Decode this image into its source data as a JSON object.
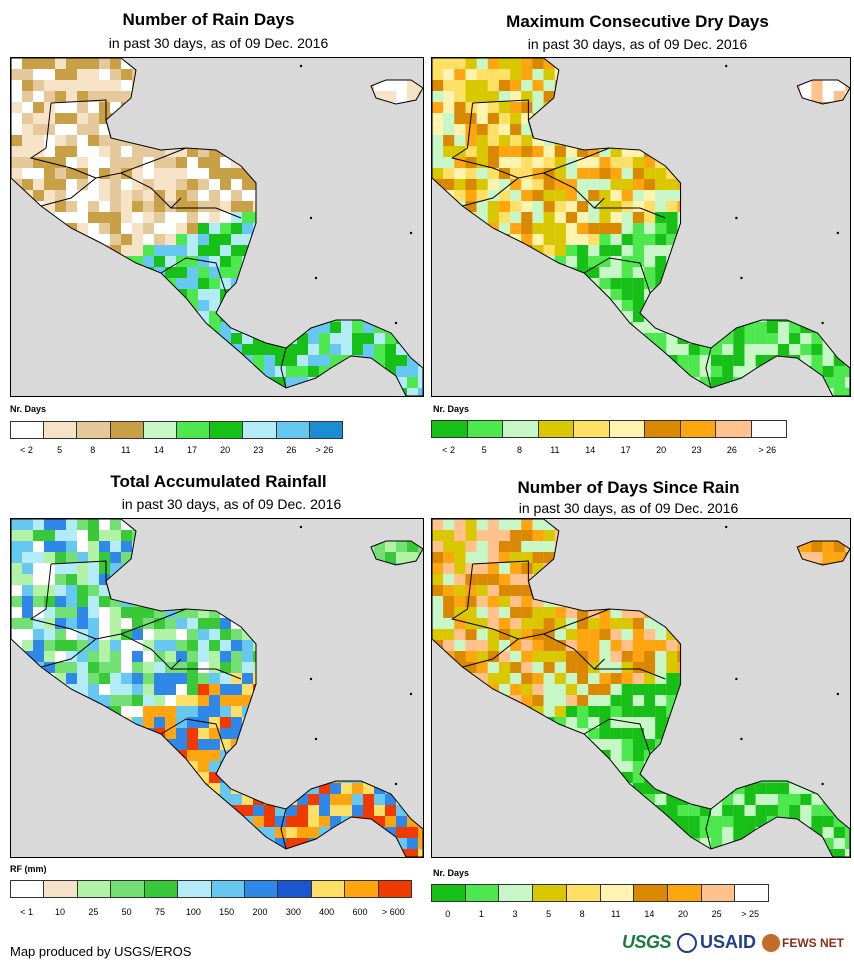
{
  "panels": [
    {
      "title": "Number of Rain Days",
      "subtitle": "in past 30 days, as of 09 Dec. 2016",
      "legend_title": "Nr. Days",
      "legend_colors": [
        "#ffffff",
        "#f5e2c7",
        "#e6c99a",
        "#c8a046",
        "#c7f7c7",
        "#4de84d",
        "#16c016",
        "#b3ebf7",
        "#66c8f0",
        "#1a8ed1"
      ],
      "legend_labels": [
        "< 2",
        "5",
        "8",
        "11",
        "14",
        "17",
        "20",
        "23",
        "26",
        "> 26"
      ],
      "north_colors": [
        "#ffffff",
        "#f5e2c7",
        "#e6c99a",
        "#c8a046"
      ],
      "south_colors": [
        "#16c016",
        "#4de84d",
        "#b3ebf7",
        "#66c8f0"
      ],
      "islands_colors": [
        "#ffffff",
        "#f5e2c7",
        "#e6c99a"
      ]
    },
    {
      "title": "Maximum Consecutive Dry Days",
      "subtitle": "in past 30 days, as of 09 Dec. 2016",
      "legend_title": "Nr. Days",
      "legend_colors": [
        "#16c016",
        "#4de84d",
        "#c7f7c7",
        "#d9c700",
        "#ffe066",
        "#fff3b0",
        "#d98800",
        "#ffa510",
        "#ffc28c",
        "#ffffff"
      ],
      "legend_labels": [
        "< 2",
        "5",
        "8",
        "11",
        "14",
        "17",
        "20",
        "23",
        "26",
        "> 26"
      ],
      "north_colors": [
        "#d9c700",
        "#ffe066",
        "#fff3b0",
        "#d98800",
        "#ffa510",
        "#c7f7c7"
      ],
      "south_colors": [
        "#16c016",
        "#4de84d",
        "#c7f7c7"
      ],
      "islands_colors": [
        "#ffffff",
        "#ffc28c"
      ]
    },
    {
      "title": "Total Accumulated Rainfall",
      "subtitle": "in past 30 days, as of 09 Dec. 2016",
      "legend_title": "RF (mm)",
      "legend_colors": [
        "#ffffff",
        "#f5e2c7",
        "#b2f2a5",
        "#72e072",
        "#38c838",
        "#b3ebf7",
        "#66c8f0",
        "#2f88e8",
        "#1a56d1",
        "#ffe066",
        "#ffa510",
        "#f03a00"
      ],
      "legend_labels": [
        "< 1",
        "10",
        "25",
        "50",
        "75",
        "100",
        "150",
        "200",
        "300",
        "400",
        "600",
        "> 600"
      ],
      "north_colors": [
        "#b2f2a5",
        "#72e072",
        "#38c838",
        "#b3ebf7",
        "#66c8f0",
        "#2f88e8",
        "#ffffff"
      ],
      "south_colors": [
        "#ffe066",
        "#ffa510",
        "#f03a00",
        "#2f88e8",
        "#66c8f0"
      ],
      "islands_colors": [
        "#38c838",
        "#72e072",
        "#b2f2a5"
      ]
    },
    {
      "title": "Number of Days Since Rain",
      "subtitle": "in past 30 days, as of 09 Dec. 2016",
      "legend_title": "Nr. Days",
      "legend_colors": [
        "#16c016",
        "#4de84d",
        "#c7f7c7",
        "#d9c700",
        "#ffe066",
        "#fff3b0",
        "#d98800",
        "#ffa510",
        "#ffc28c",
        "#ffffff"
      ],
      "legend_labels": [
        "0",
        "1",
        "3",
        "5",
        "8",
        "11",
        "14",
        "20",
        "25",
        "> 25"
      ],
      "north_colors": [
        "#d98800",
        "#ffa510",
        "#c7f7c7",
        "#d9c700",
        "#ffc28c"
      ],
      "south_colors": [
        "#16c016",
        "#16c016",
        "#4de84d",
        "#c7f7c7"
      ],
      "islands_colors": [
        "#ffc28c",
        "#ffa510",
        "#d98800"
      ]
    }
  ],
  "credit": "Map produced by USGS/EROS",
  "logos": {
    "usgs": "USGS",
    "usaid": "USAID",
    "fews": "FEWS NET"
  }
}
